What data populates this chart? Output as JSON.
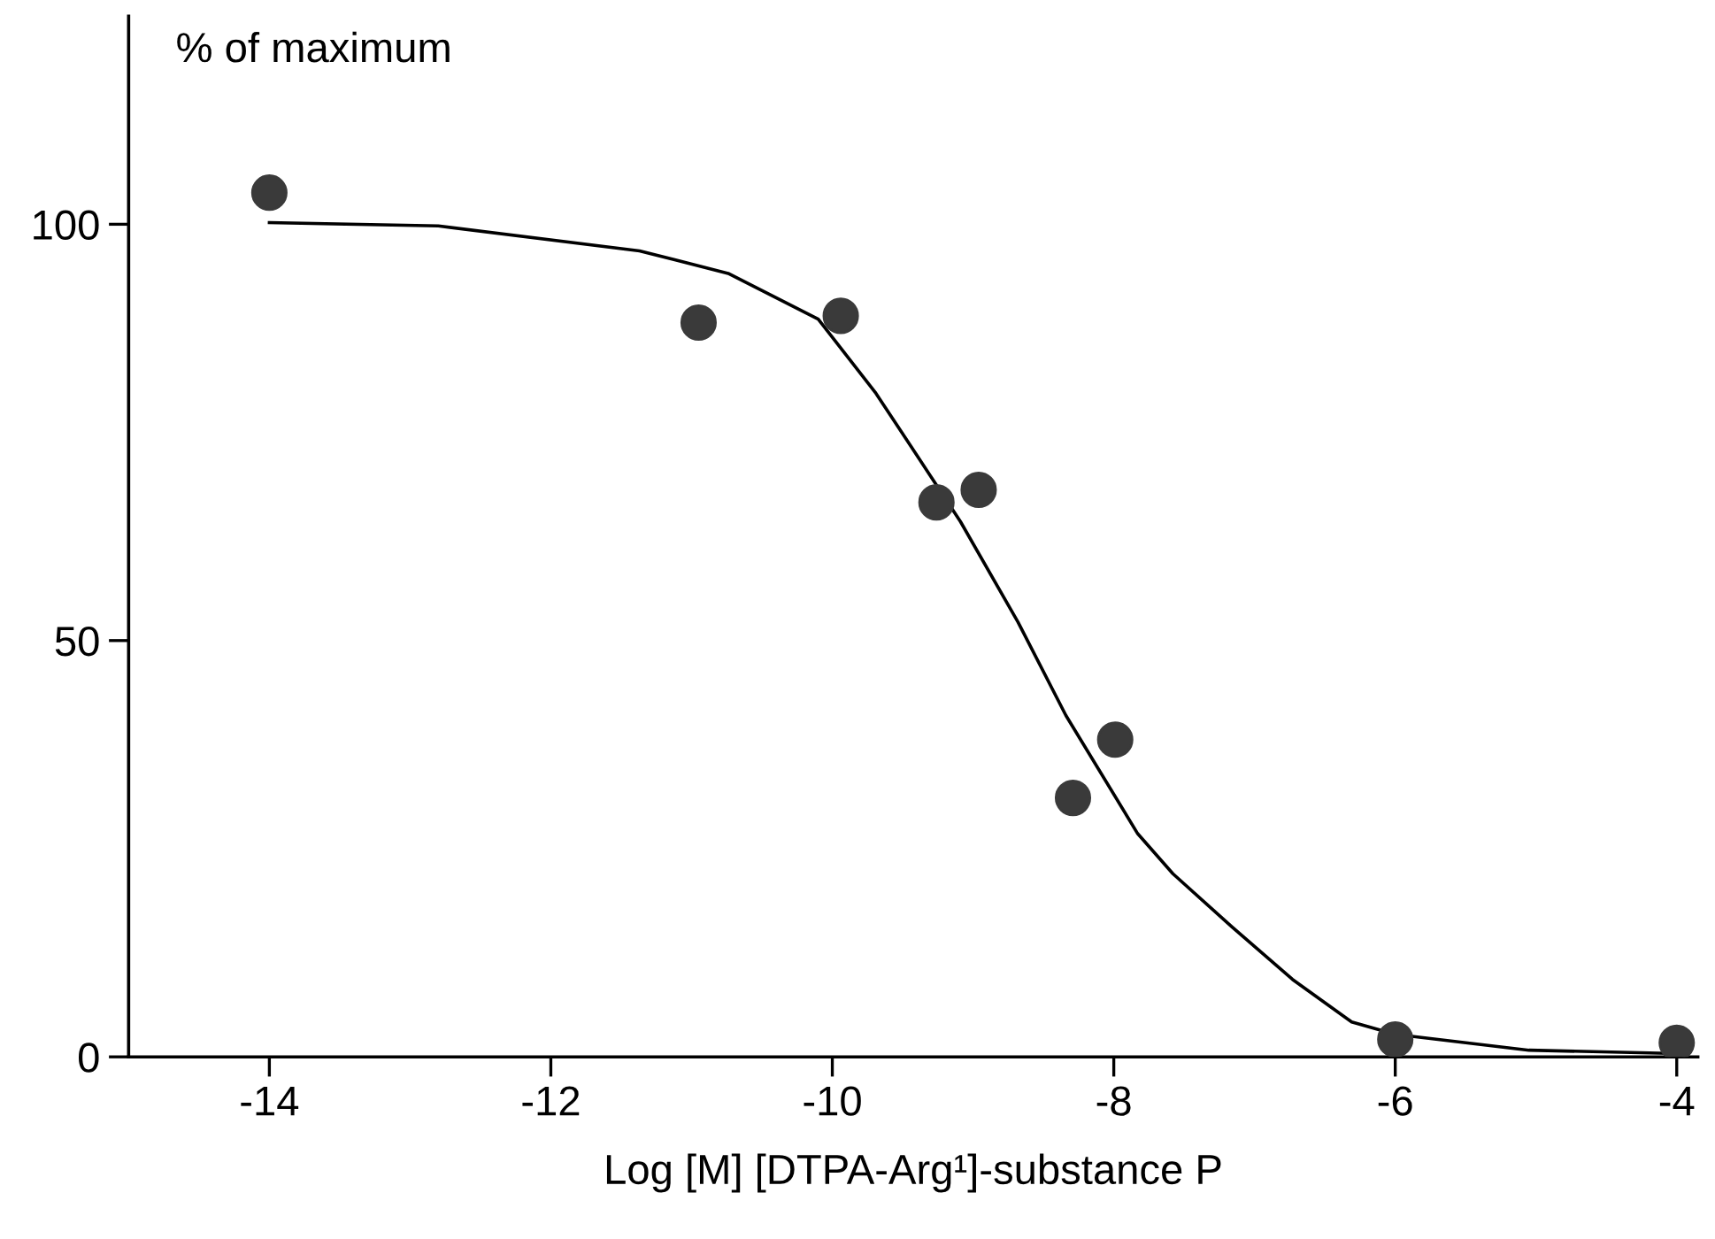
{
  "chart_data": {
    "type": "scatter",
    "ylabel": "% of maximum",
    "xlabel": "Log [M] [DTPA-Arg¹]-substance P",
    "xlim": [
      -15,
      -3.85
    ],
    "xticks": [
      -14,
      -12,
      -10,
      -8,
      -6,
      -4
    ],
    "ylim": [
      0,
      125
    ],
    "yticks": [
      0,
      50,
      100
    ],
    "grid": false,
    "legend": false,
    "series": [
      {
        "marker": "circle",
        "color": "#3a3a3a",
        "x": [
          -14,
          -10.95,
          -9.94,
          -9.26,
          -8.96,
          -8.29,
          -7.99,
          -6,
          -4
        ],
        "values": [
          103.8,
          88.2,
          89.0,
          66.6,
          68.1,
          31.1,
          38.1,
          2.1,
          1.7
        ]
      },
      {
        "type": "line",
        "marker": "none",
        "color": "#000000",
        "x": [
          -14,
          -12.8,
          -11.37,
          -10.74,
          -10.1,
          -9.69,
          -9.51,
          -9.09,
          -8.68,
          -8.34,
          -7.83,
          -7.58,
          -7.16,
          -6.73,
          -6.31,
          -6,
          -5.05,
          -4
        ],
        "values": [
          100.2,
          99.8,
          96.8,
          94.1,
          88.6,
          79.7,
          75.1,
          64.3,
          52.2,
          41.0,
          26.8,
          22.0,
          15.6,
          9.3,
          4.2,
          2.7,
          0.8,
          0.4
        ]
      }
    ]
  }
}
